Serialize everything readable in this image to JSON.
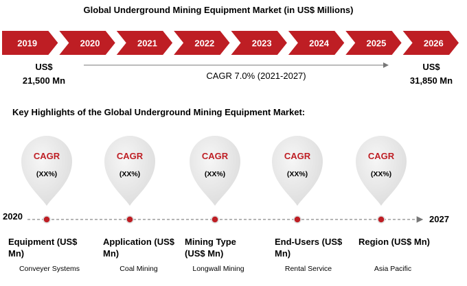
{
  "title": "Global Underground Mining Equipment Market (in US$ Millions)",
  "years": [
    "2019",
    "2020",
    "2021",
    "2022",
    "2023",
    "2024",
    "2025",
    "2026"
  ],
  "start": {
    "currency": "US$",
    "value": "21,500 Mn"
  },
  "end": {
    "currency": "US$",
    "value": "31,850 Mn"
  },
  "cagr": "CAGR 7.0% (2021-2027)",
  "highlights_title": "Key Highlights of the Global Underground Mining Equipment Market:",
  "timeline": {
    "start": "2020",
    "end": "2027"
  },
  "pins": [
    {
      "label": "CAGR",
      "value": "(XX%)",
      "category": "Equipment (US$ Mn)",
      "example": "Conveyer Systems"
    },
    {
      "label": "CAGR",
      "value": "(XX%)",
      "category": "Application (US$ Mn)",
      "example": "Coal Mining"
    },
    {
      "label": "CAGR",
      "value": "(XX%)",
      "category": "Mining Type (US$ Mn)",
      "example": "Longwall Mining"
    },
    {
      "label": "CAGR",
      "value": "(XX%)",
      "category": "End-Users (US$ Mn)",
      "example": "Rental Service"
    },
    {
      "label": "CAGR",
      "value": "(XX%)",
      "category": "Region (US$ Mn)",
      "example": "Asia Pacific"
    }
  ]
}
